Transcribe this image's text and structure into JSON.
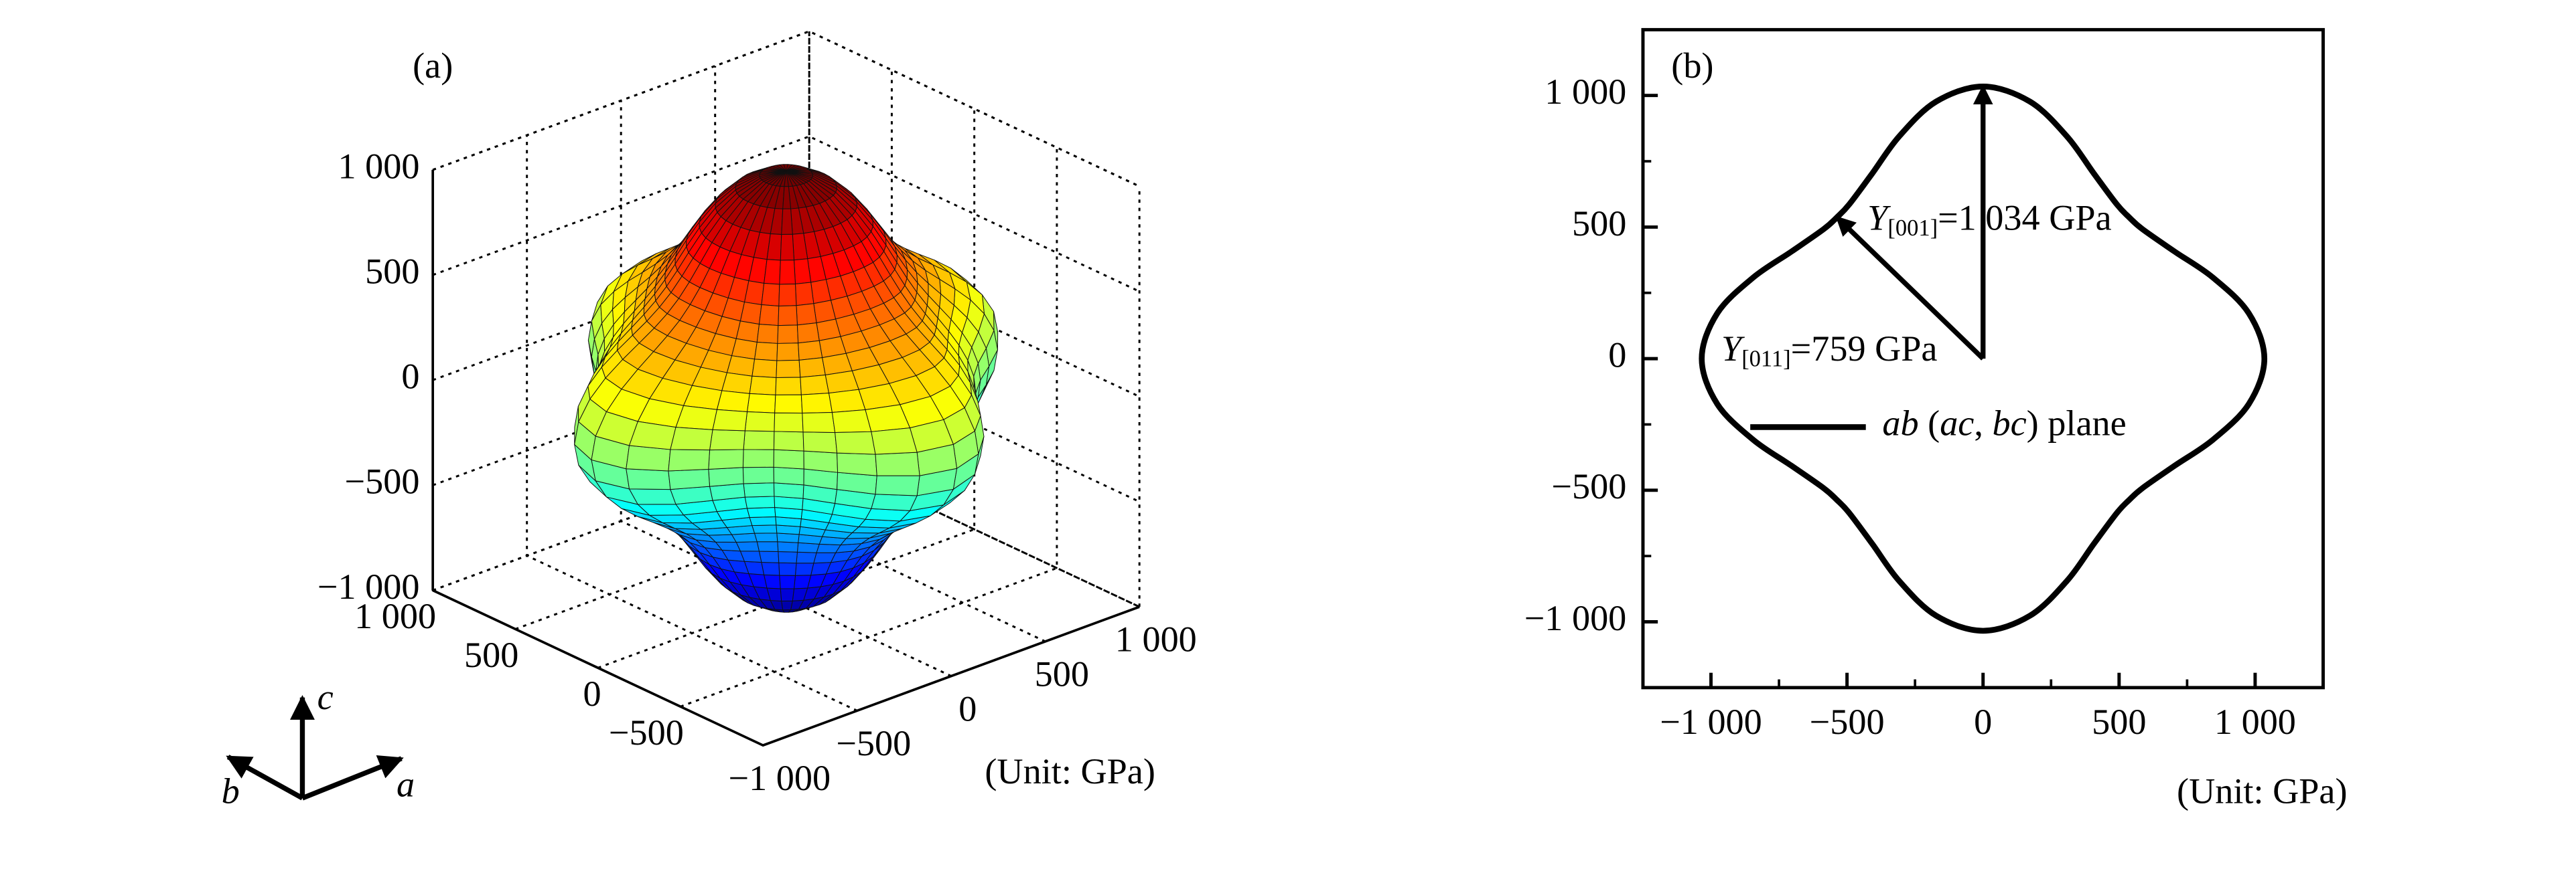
{
  "chart_data": [
    {
      "type": "surface3d",
      "label": "(a)",
      "unit_label": "(Unit: GPa)",
      "colormap": "jet",
      "grid": true,
      "xlim": [
        -1000,
        1000
      ],
      "ylim": [
        -1000,
        1000
      ],
      "zlim": [
        -1000,
        1000
      ],
      "xticks": [
        {
          "value": -1000,
          "label": "−1 000"
        },
        {
          "value": -500,
          "label": "−500"
        },
        0,
        500,
        {
          "value": 1000,
          "label": "1 000"
        }
      ],
      "yticks": [
        {
          "value": -500,
          "label": "−500"
        },
        0,
        500,
        {
          "value": 1000,
          "label": "1 000"
        }
      ],
      "zticks": [
        {
          "value": -1000,
          "label": "−1 000"
        },
        {
          "value": -500,
          "label": "−500"
        },
        0,
        500,
        {
          "value": 1000,
          "label": "1 000"
        }
      ],
      "triad": [
        "a",
        "b",
        "c"
      ]
    },
    {
      "type": "line",
      "label": "(b)",
      "unit_label": "(Unit: GPa)",
      "legend": "left",
      "xlim": [
        -1250,
        1250
      ],
      "ylim": [
        -1250,
        1250
      ],
      "xticks": [
        {
          "value": -1000,
          "label": "−1 000"
        },
        {
          "value": -500,
          "label": "−500"
        },
        0,
        500,
        {
          "value": 1000,
          "label": "1 000"
        }
      ],
      "yticks": [
        {
          "value": -1000,
          "label": "−1 000"
        },
        {
          "value": -500,
          "label": "−500"
        },
        0,
        500,
        {
          "value": 1000,
          "label": "1 000"
        }
      ],
      "xminorticks": [
        -750,
        -250,
        250,
        750
      ],
      "yminorticks": [
        -750,
        -250,
        250,
        750
      ],
      "series": [
        {
          "name": "ab (ac, bc) plane",
          "color": "#000000",
          "x": [
            1034,
            977,
            845,
            704,
            586,
            537,
            492,
            407,
            308,
            172,
            0,
            -172,
            -308,
            -407,
            -492,
            -537,
            -586,
            -704,
            -845,
            -977,
            -1034,
            -977,
            -845,
            -704,
            -586,
            -537,
            -492,
            -407,
            -308,
            -172,
            0,
            172,
            308,
            407,
            492,
            537,
            586,
            704,
            845,
            977
          ],
          "y": [
            0,
            172,
            308,
            407,
            492,
            537,
            586,
            704,
            845,
            977,
            1034,
            977,
            845,
            704,
            586,
            537,
            492,
            407,
            308,
            172,
            0,
            -172,
            -308,
            -407,
            -492,
            -537,
            -586,
            -704,
            -845,
            -977,
            -1034,
            -977,
            -845,
            -704,
            -586,
            -537,
            -492,
            -407,
            -308,
            -172
          ]
        }
      ],
      "annotations": [
        {
          "symbol": "Y",
          "subscript": "[001]",
          "text": "=1 034 GPa",
          "x": 0,
          "y": 1034
        },
        {
          "symbol": "Y",
          "subscript": "[011]",
          "text": "=759 GPa",
          "x": -537,
          "y": 537
        }
      ]
    }
  ]
}
